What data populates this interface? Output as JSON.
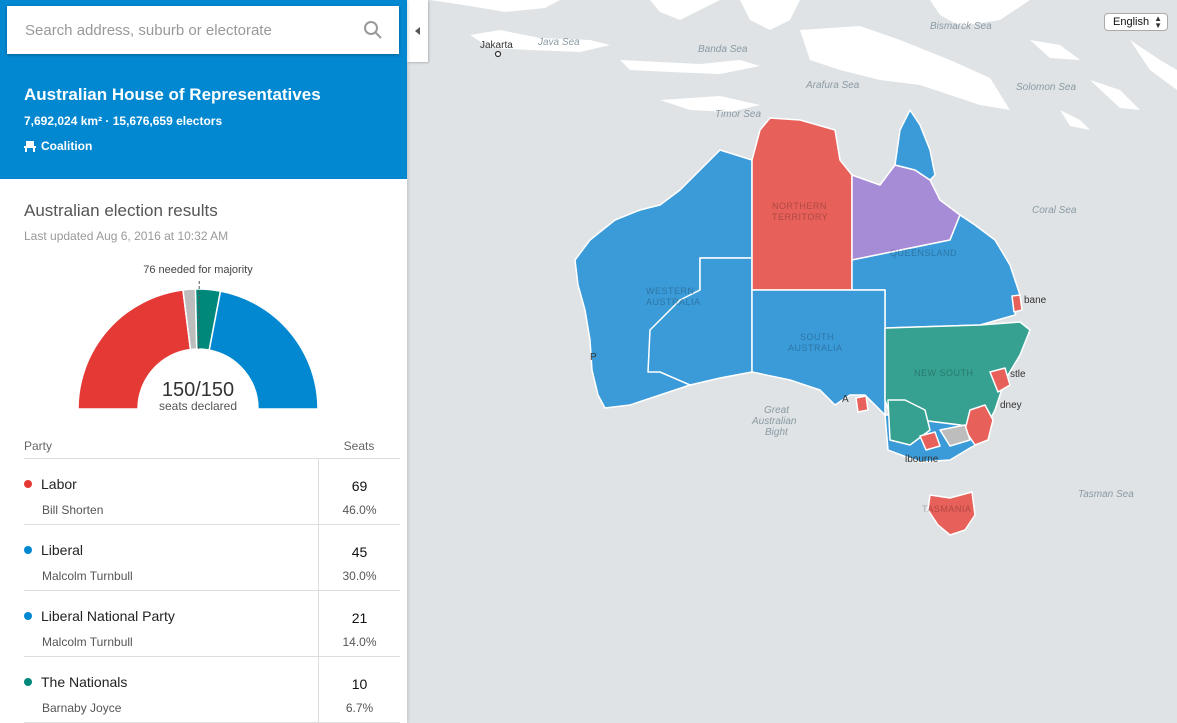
{
  "search": {
    "placeholder": "Search address, suburb or electorate"
  },
  "header": {
    "title": "Australian House of Representatives",
    "stats": "7,692,024 km² · 15,676,659 electors",
    "government": "Coalition"
  },
  "results": {
    "title": "Australian election results",
    "updated": "Last updated Aug 6, 2016 at 10:32 AM",
    "majority_label": "76 needed for majority",
    "declared_count": "150/150",
    "declared_label": "seats declared"
  },
  "chart_data": {
    "type": "pie",
    "subtype": "half-donut",
    "total_seats": 150,
    "majority": 76,
    "segments": [
      {
        "name": "Labor",
        "value": 69,
        "color": "#e53935"
      },
      {
        "name": "Others",
        "value": 5,
        "color": "#bdbdbd"
      },
      {
        "name": "The Nationals",
        "value": 10,
        "color": "#00897b"
      },
      {
        "name": "Coalition (Liberal + LNP)",
        "value": 66,
        "color": "#0288d1"
      }
    ]
  },
  "table": {
    "party_header": "Party",
    "seats_header": "Seats",
    "rows": [
      {
        "party": "Labor",
        "leader": "Bill Shorten",
        "seats": "69",
        "pct": "46.0%",
        "color": "#e53935"
      },
      {
        "party": "Liberal",
        "leader": "Malcolm Turnbull",
        "seats": "45",
        "pct": "30.0%",
        "color": "#0288d1"
      },
      {
        "party": "Liberal National Party",
        "leader": "Malcolm Turnbull",
        "seats": "21",
        "pct": "14.0%",
        "color": "#0288d1"
      },
      {
        "party": "The Nationals",
        "leader": "Barnaby Joyce",
        "seats": "10",
        "pct": "6.7%",
        "color": "#00897b"
      }
    ]
  },
  "map": {
    "language": "English",
    "sea_labels": {
      "java": "Java Sea",
      "banda": "Banda Sea",
      "bismarck": "Bismarck Sea",
      "arafura": "Arafura Sea",
      "solomon": "Solomon Sea",
      "timor": "Timor Sea",
      "coral": "Coral Sea",
      "bight1": "Great",
      "bight2": "Australian",
      "bight3": "Bight",
      "tasman": "Tasman Sea"
    },
    "state_labels": {
      "nt1": "NORTHERN",
      "nt2": "TERRITORY",
      "qld": "QUEENSLAND",
      "wa1": "WESTERN",
      "wa2": "AUSTRALIA",
      "sa1": "SOUTH",
      "sa2": "AUSTRALIA",
      "nsw": "NEW SOUTH",
      "tas": "TASMANIA"
    },
    "city_labels": {
      "jakarta": "Jakarta",
      "brisbane": "bane",
      "newcastle": "stle",
      "sydney": "dney",
      "adelaide": "A",
      "melbourne": "lbourne",
      "perth": "P"
    },
    "colors": {
      "labor": "#e8605a",
      "coalition": "#3b9bd9",
      "nationals": "#36a191",
      "lnp": "#a68bd6",
      "other": "#bdbdbd",
      "land": "#ffffff",
      "sea": "#dfe3e5"
    }
  }
}
